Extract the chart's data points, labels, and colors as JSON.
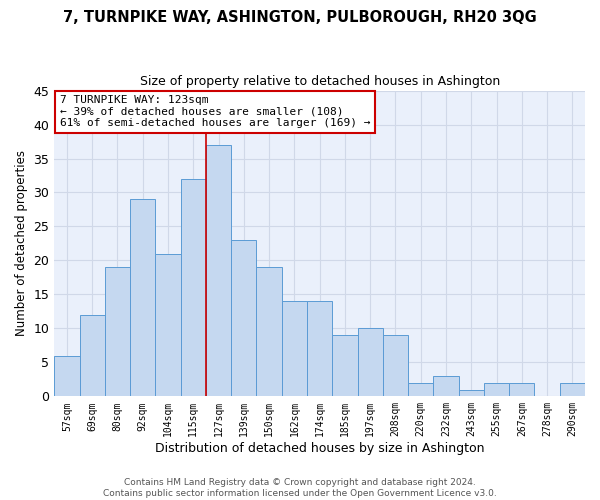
{
  "title": "7, TURNPIKE WAY, ASHINGTON, PULBOROUGH, RH20 3QG",
  "subtitle": "Size of property relative to detached houses in Ashington",
  "xlabel": "Distribution of detached houses by size in Ashington",
  "ylabel": "Number of detached properties",
  "bin_labels": [
    "57sqm",
    "69sqm",
    "80sqm",
    "92sqm",
    "104sqm",
    "115sqm",
    "127sqm",
    "139sqm",
    "150sqm",
    "162sqm",
    "174sqm",
    "185sqm",
    "197sqm",
    "208sqm",
    "220sqm",
    "232sqm",
    "243sqm",
    "255sqm",
    "267sqm",
    "278sqm",
    "290sqm"
  ],
  "bar_heights": [
    6,
    12,
    19,
    29,
    21,
    32,
    37,
    23,
    19,
    14,
    14,
    9,
    10,
    9,
    2,
    3,
    1,
    2,
    2,
    0,
    2
  ],
  "bar_color": "#c5d8f0",
  "bar_edge_color": "#5b9bd5",
  "grid_color": "#d0d8e8",
  "plot_bg_color": "#eaf0fb",
  "fig_bg_color": "#ffffff",
  "ylim": [
    0,
    45
  ],
  "yticks": [
    0,
    5,
    10,
    15,
    20,
    25,
    30,
    35,
    40,
    45
  ],
  "marker_bin_idx": 6,
  "annotation_line1": "7 TURNPIKE WAY: 123sqm",
  "annotation_line2": "← 39% of detached houses are smaller (108)",
  "annotation_line3": "61% of semi-detached houses are larger (169) →",
  "annotation_box_facecolor": "#ffffff",
  "annotation_box_edgecolor": "#cc0000",
  "marker_line_color": "#cc0000",
  "footnote1": "Contains HM Land Registry data © Crown copyright and database right 2024.",
  "footnote2": "Contains public sector information licensed under the Open Government Licence v3.0."
}
